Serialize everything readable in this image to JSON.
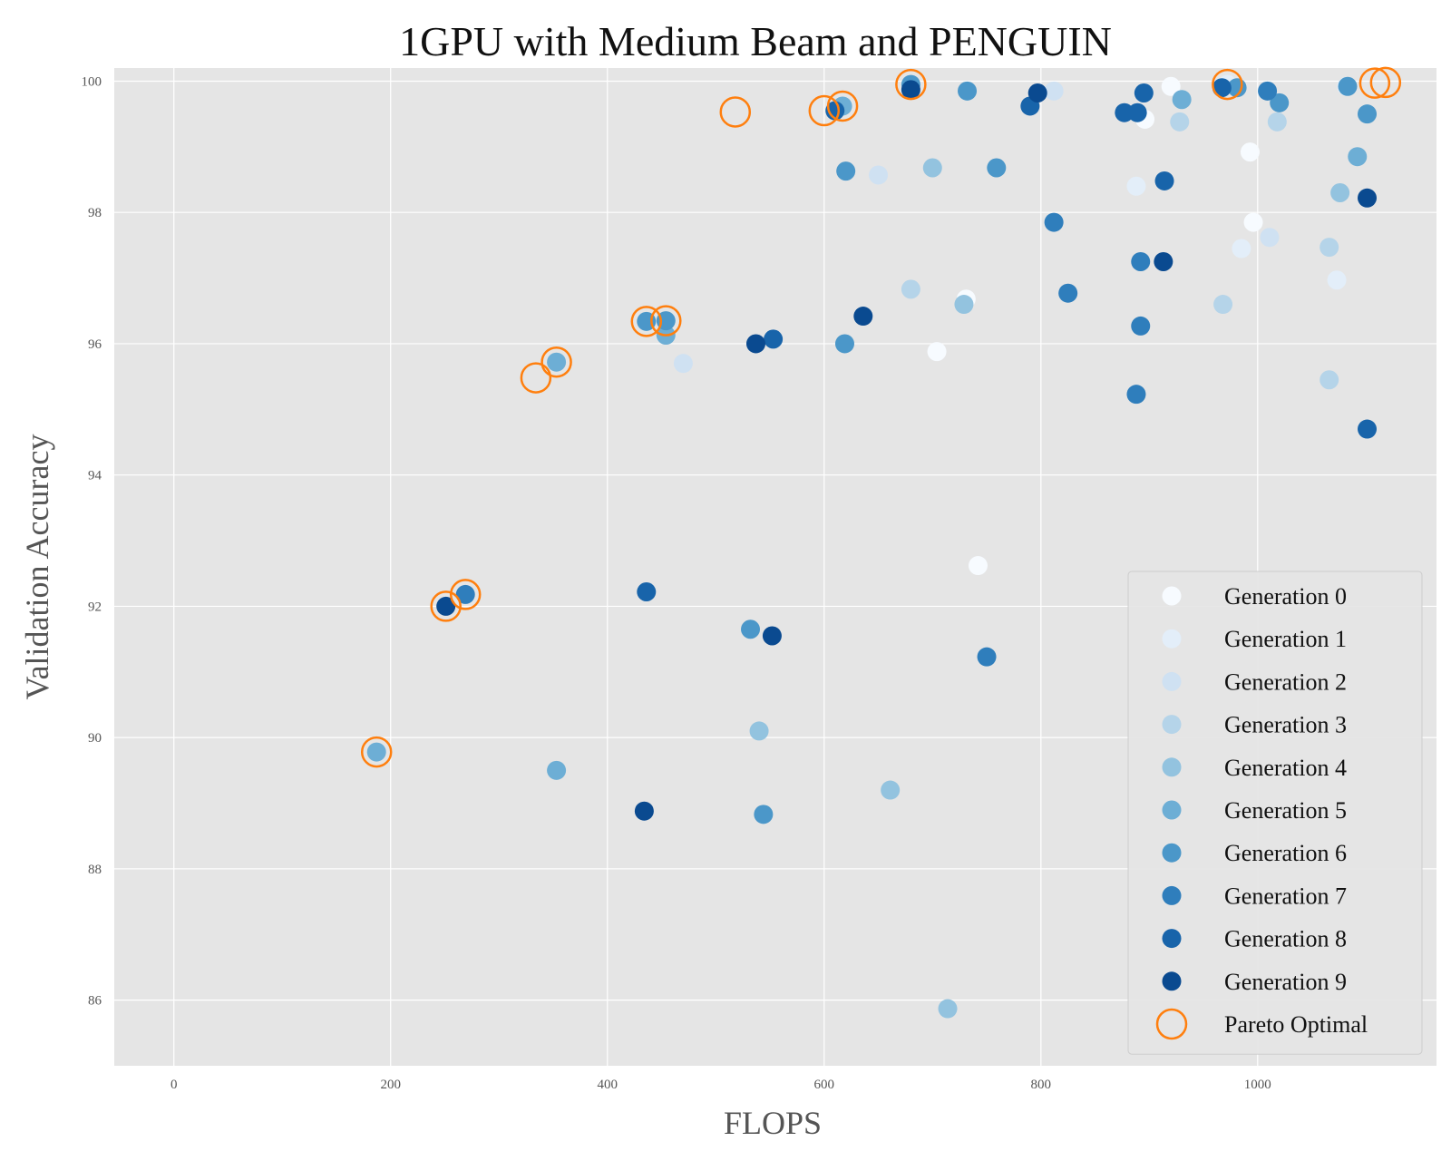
{
  "chart_data": {
    "type": "scatter",
    "title": "1GPU with Medium Beam and PENGUIN",
    "xlabel": "FLOPS",
    "ylabel": "Validation Accuracy",
    "xlim": [
      -55,
      1165
    ],
    "ylim": [
      85,
      100.2
    ],
    "xticks": [
      "0",
      "200",
      "400",
      "600",
      "800",
      "1000"
    ],
    "yticks": [
      "86",
      "88",
      "90",
      "92",
      "94",
      "96",
      "98",
      "100"
    ],
    "grid": true,
    "legend_position": "lower-right",
    "colors": {
      "plot_background": "#e5e5e5",
      "grid": "#ffffff",
      "pareto_ring": "#ff7f0e",
      "generations": [
        "#f7fbff",
        "#e3eef9",
        "#cfe1f2",
        "#b5d4e9",
        "#93c3df",
        "#6daed5",
        "#4b97c9",
        "#2f7ebc",
        "#1864aa",
        "#0a4a90",
        "#08306b"
      ]
    },
    "series": [
      {
        "name": "Generation 0",
        "color_index": 0,
        "points": [
          [
            920,
            99.92
          ],
          [
            896,
            99.42
          ],
          [
            993,
            98.92
          ],
          [
            996,
            97.85
          ],
          [
            731,
            96.68
          ],
          [
            704,
            95.88
          ],
          [
            742,
            92.62
          ]
        ]
      },
      {
        "name": "Generation 1",
        "color_index": 1,
        "points": [
          [
            972,
            99.95
          ],
          [
            1082,
            99.92
          ],
          [
            888,
            98.4
          ],
          [
            985,
            97.45
          ],
          [
            1073,
            96.97
          ]
        ]
      },
      {
        "name": "Generation 2",
        "color_index": 2,
        "points": [
          [
            812,
            99.85
          ],
          [
            650,
            98.57
          ],
          [
            1011,
            97.62
          ],
          [
            470,
            95.7
          ]
        ]
      },
      {
        "name": "Generation 3",
        "color_index": 3,
        "points": [
          [
            928,
            99.38
          ],
          [
            1018,
            99.38
          ],
          [
            680,
            96.83
          ],
          [
            1066,
            97.47
          ],
          [
            968,
            96.6
          ],
          [
            1066,
            95.45
          ]
        ]
      },
      {
        "name": "Generation 4",
        "color_index": 4,
        "points": [
          [
            700,
            98.68
          ],
          [
            1076,
            98.3
          ],
          [
            729,
            96.6
          ],
          [
            540,
            90.1
          ],
          [
            661,
            89.2
          ],
          [
            714,
            85.87
          ]
        ]
      },
      {
        "name": "Generation 5",
        "color_index": 5,
        "points": [
          [
            617,
            99.62
          ],
          [
            930,
            99.72
          ],
          [
            1092,
            98.85
          ],
          [
            353,
            95.72
          ],
          [
            454,
            96.13
          ],
          [
            187,
            89.78
          ],
          [
            353,
            89.5
          ]
        ]
      },
      {
        "name": "Generation 6",
        "color_index": 6,
        "points": [
          [
            680,
            99.95
          ],
          [
            732,
            99.85
          ],
          [
            981,
            99.9
          ],
          [
            1020,
            99.67
          ],
          [
            1101,
            99.5
          ],
          [
            1083,
            99.92
          ],
          [
            620,
            98.63
          ],
          [
            759,
            98.68
          ],
          [
            454,
            96.35
          ],
          [
            436,
            96.34
          ],
          [
            619,
            96.0
          ],
          [
            532,
            91.65
          ],
          [
            544,
            88.83
          ]
        ]
      },
      {
        "name": "Generation 7",
        "color_index": 7,
        "points": [
          [
            1009,
            99.85
          ],
          [
            812,
            97.85
          ],
          [
            892,
            97.25
          ],
          [
            825,
            96.77
          ],
          [
            892,
            96.27
          ],
          [
            888,
            95.23
          ],
          [
            269,
            92.18
          ],
          [
            750,
            91.23
          ]
        ]
      },
      {
        "name": "Generation 8",
        "color_index": 8,
        "points": [
          [
            610,
            99.55
          ],
          [
            790,
            99.62
          ],
          [
            877,
            99.52
          ],
          [
            889,
            99.52
          ],
          [
            895,
            99.82
          ],
          [
            967,
            99.9
          ],
          [
            914,
            98.48
          ],
          [
            553,
            96.07
          ],
          [
            436,
            92.22
          ],
          [
            1101,
            94.7
          ]
        ]
      },
      {
        "name": "Generation 9",
        "color_index": 9,
        "points": [
          [
            680,
            99.87
          ],
          [
            797,
            99.82
          ],
          [
            1101,
            98.22
          ],
          [
            913,
            97.25
          ],
          [
            636,
            96.42
          ],
          [
            537,
            96.0
          ],
          [
            251,
            92.0
          ],
          [
            552,
            91.55
          ],
          [
            434,
            88.88
          ]
        ]
      }
    ],
    "pareto_optimal": {
      "name": "Pareto Optimal",
      "points": [
        [
          187,
          89.78
        ],
        [
          251,
          92.0
        ],
        [
          269,
          92.18
        ],
        [
          334,
          95.48
        ],
        [
          353,
          95.72
        ],
        [
          436,
          96.34
        ],
        [
          454,
          96.35
        ],
        [
          518,
          99.53
        ],
        [
          600,
          99.55
        ],
        [
          617,
          99.62
        ],
        [
          680,
          99.95
        ],
        [
          972,
          99.95
        ],
        [
          1108,
          99.97
        ],
        [
          1118,
          99.98
        ]
      ]
    }
  }
}
